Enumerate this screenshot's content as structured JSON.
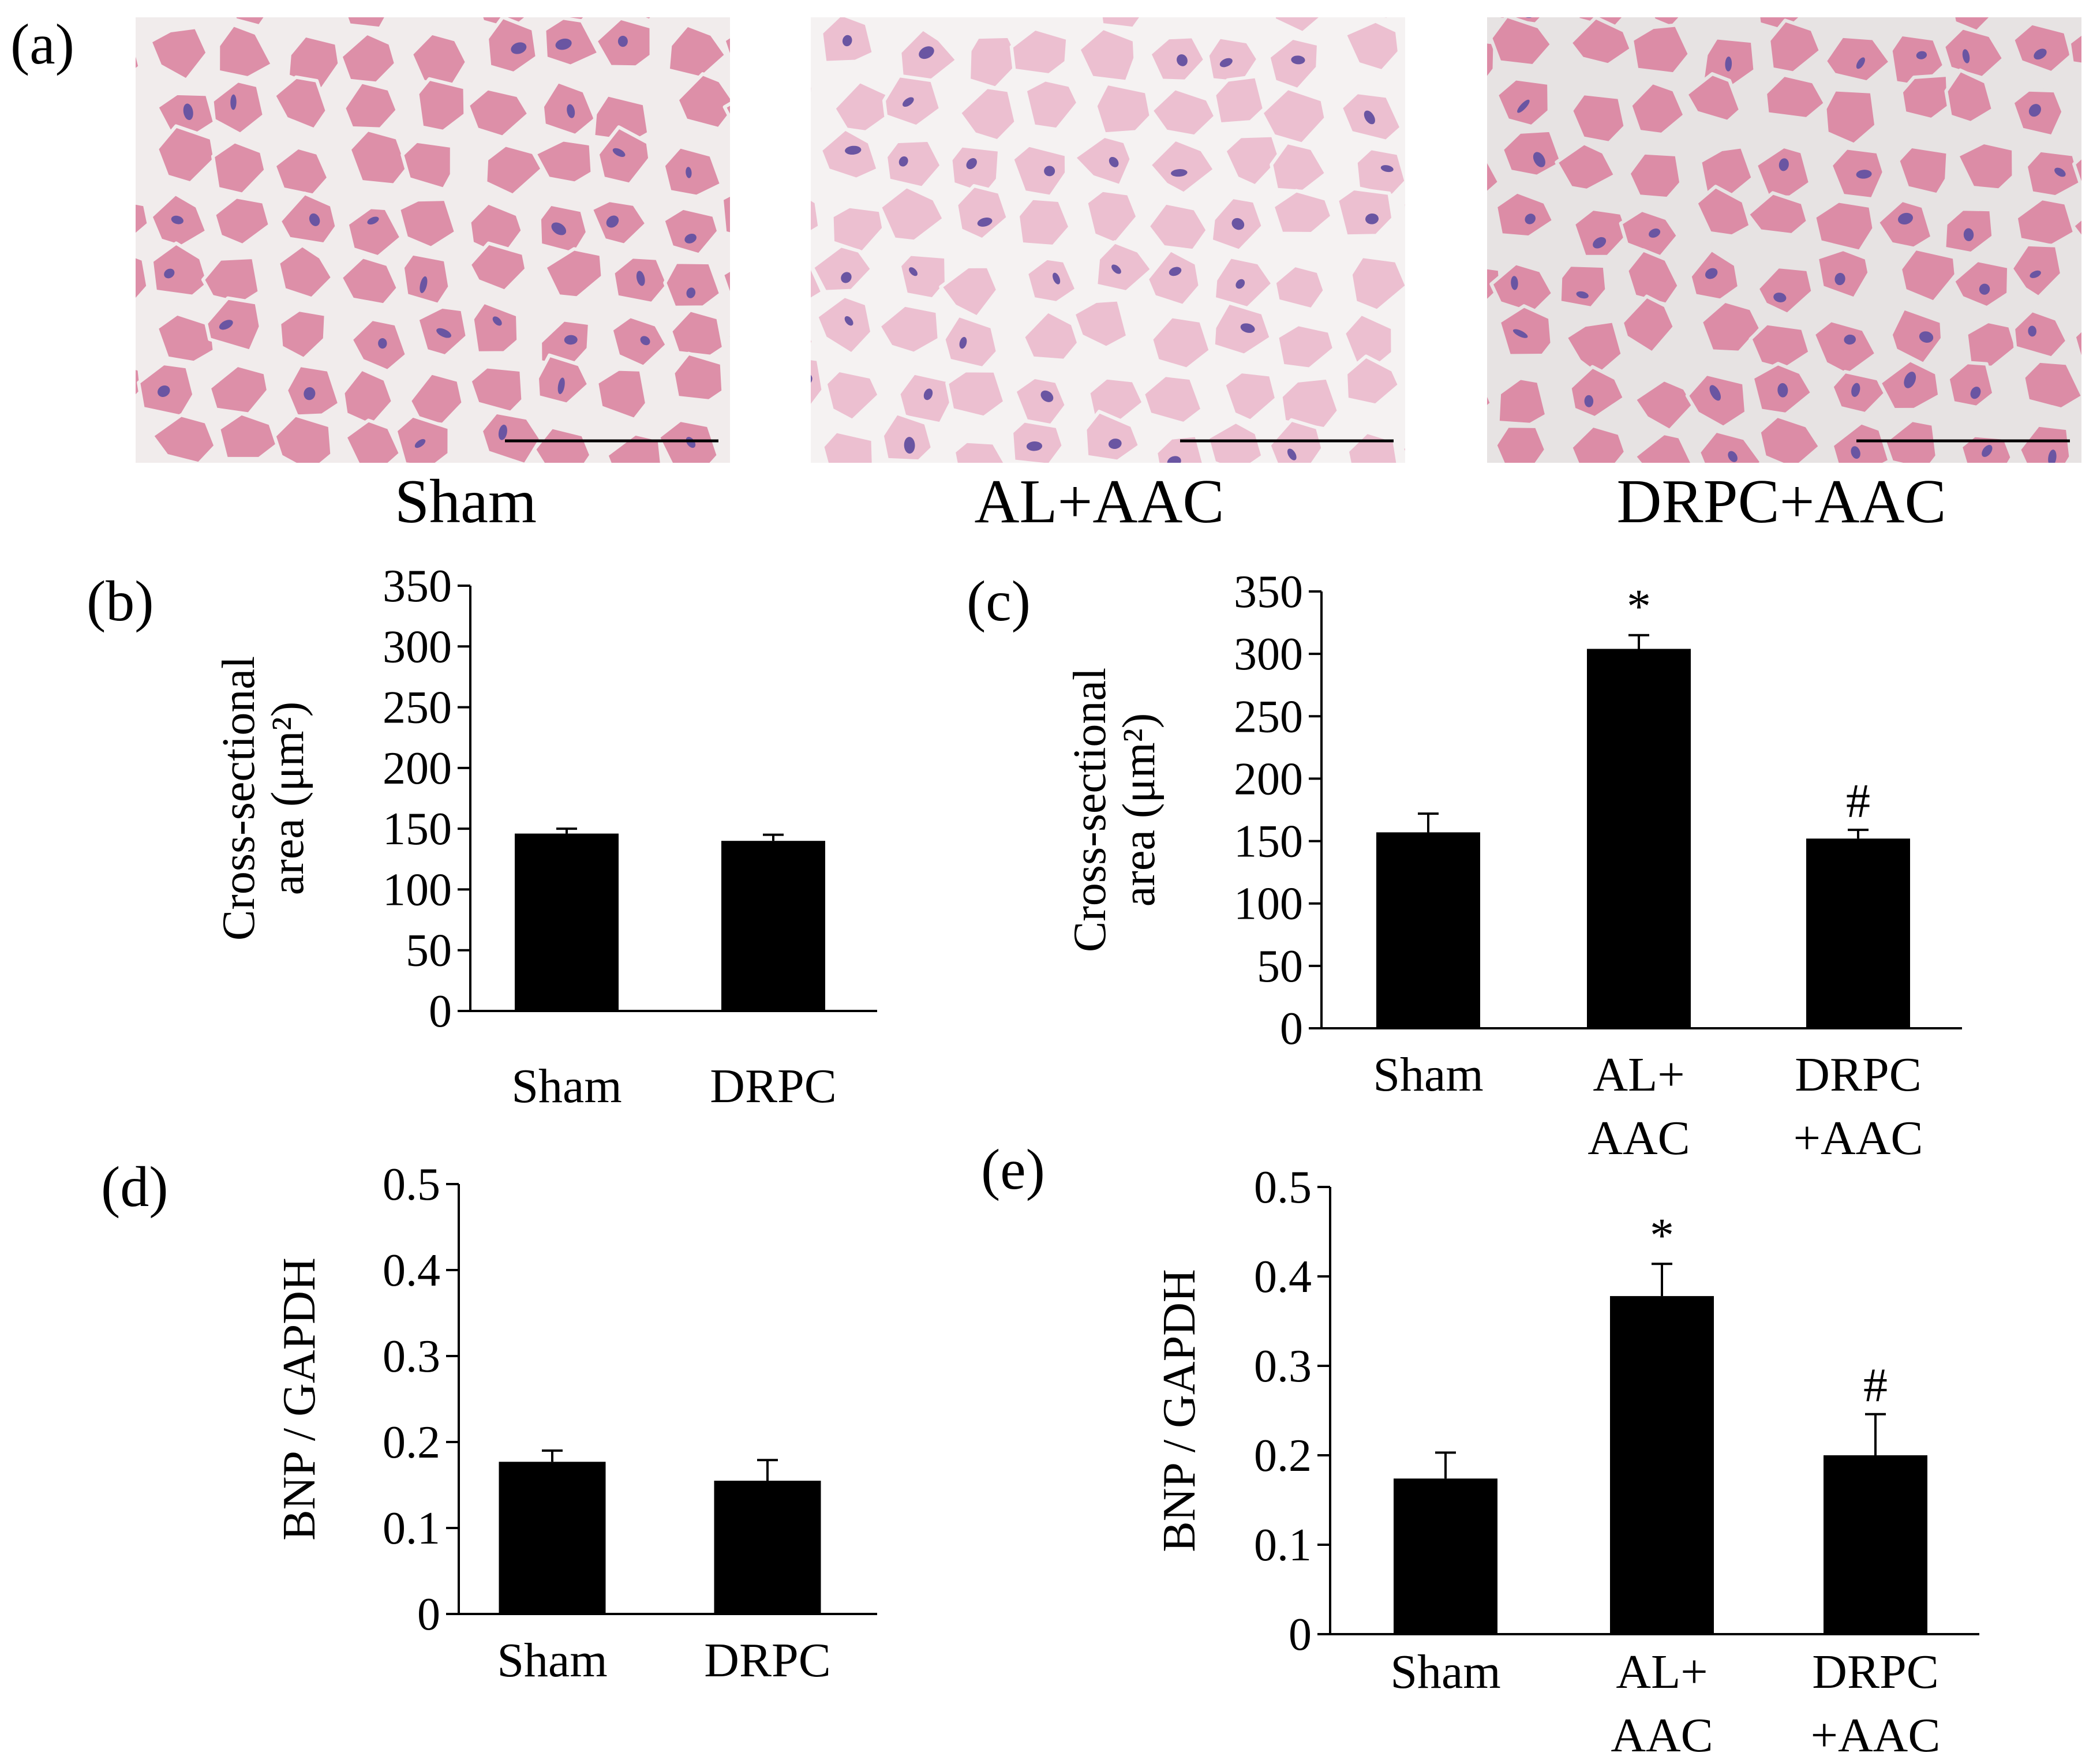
{
  "panels": {
    "a": {
      "letter": "(a)",
      "images": [
        {
          "label": "Sham",
          "palette": {
            "cell": "#dd8fa8",
            "gap": "#f1ecec",
            "nucleus": "#6a55a2",
            "bar": "#000000"
          }
        },
        {
          "label": "AL+AAC",
          "palette": {
            "cell": "#ecbfd0",
            "gap": "#f5f2f2",
            "nucleus": "#6a55a2",
            "bar": "#000000"
          }
        },
        {
          "label": "DRPC+AAC",
          "palette": {
            "cell": "#dc8ca6",
            "gap": "#e7e3e3",
            "nucleus": "#6a55a2",
            "bar": "#000000"
          }
        }
      ]
    }
  },
  "chart_data": [
    {
      "id": "b",
      "letter": "(b)",
      "type": "bar",
      "categories": [
        [
          "Sham"
        ],
        [
          "DRPC"
        ]
      ],
      "values": [
        146,
        140
      ],
      "errors": [
        4,
        5
      ],
      "annotations": [
        "",
        ""
      ],
      "ylabel": [
        "Cross-sectional",
        "area (μm²)"
      ],
      "ylim": [
        0,
        350
      ],
      "yticks": [
        "0",
        "50",
        "100",
        "150",
        "200",
        "250",
        "300",
        "350"
      ],
      "bar_color": "#000000"
    },
    {
      "id": "c",
      "letter": "(c)",
      "type": "bar",
      "categories": [
        [
          "Sham"
        ],
        [
          "AL+",
          "AAC"
        ],
        [
          "DRPC",
          "+AAC"
        ]
      ],
      "values": [
        157,
        304,
        152
      ],
      "errors": [
        15,
        11,
        7
      ],
      "annotations": [
        "",
        "*",
        "#"
      ],
      "ylabel": [
        "Cross-sectional",
        "area (μm²)"
      ],
      "ylim": [
        0,
        350
      ],
      "yticks": [
        "0",
        "50",
        "100",
        "150",
        "200",
        "250",
        "300",
        "350"
      ],
      "bar_color": "#000000"
    },
    {
      "id": "d",
      "letter": "(d)",
      "type": "bar",
      "categories": [
        [
          "Sham"
        ],
        [
          "DRPC"
        ]
      ],
      "values": [
        0.177,
        0.155
      ],
      "errors": [
        0.013,
        0.024
      ],
      "annotations": [
        "",
        ""
      ],
      "ylabel": [
        "BNP / GAPDH"
      ],
      "ylim": [
        0,
        0.5
      ],
      "yticks": [
        "0",
        "0.1",
        "0.2",
        "0.3",
        "0.4",
        "0.5"
      ],
      "bar_color": "#000000"
    },
    {
      "id": "e",
      "letter": "(e)",
      "type": "bar",
      "categories": [
        [
          "Sham"
        ],
        [
          "AL+",
          "AAC"
        ],
        [
          "DRPC",
          "+AAC"
        ]
      ],
      "values": [
        0.174,
        0.378,
        0.2
      ],
      "errors": [
        0.029,
        0.036,
        0.046
      ],
      "annotations": [
        "",
        "*",
        "#"
      ],
      "ylabel": [
        "BNP / GAPDH"
      ],
      "ylim": [
        0,
        0.5
      ],
      "yticks": [
        "0",
        "0.1",
        "0.2",
        "0.3",
        "0.4",
        "0.5"
      ],
      "bar_color": "#000000"
    }
  ]
}
